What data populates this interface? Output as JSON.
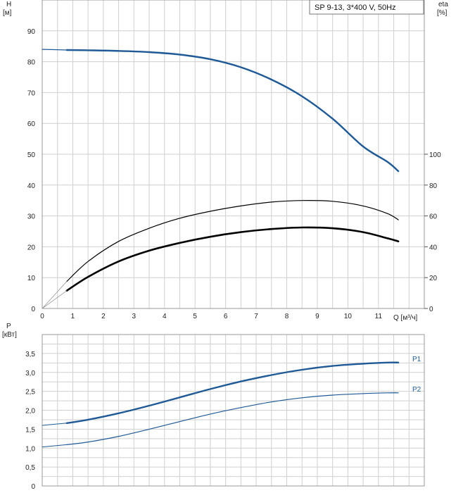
{
  "legend_box": "SP 9-13, 3*400 V, 50Hz",
  "colors": {
    "blue": "#1f5a96",
    "black": "#000000",
    "grid": "#cfcfcf"
  },
  "chart_data": [
    {
      "type": "line",
      "panel": "head_eta",
      "xlabel": "Q [м³/ч]",
      "ylabel": "H",
      "ylabel_unit": "[м]",
      "y2label": "eta",
      "y2label_unit": "[%]",
      "xlim": [
        0,
        12.5
      ],
      "ylim": [
        0,
        100
      ],
      "y2lim": [
        0,
        200
      ],
      "x_ticks": [
        0,
        1,
        2,
        3,
        4,
        5,
        6,
        7,
        8,
        9,
        10,
        11
      ],
      "y_ticks": [
        0,
        10,
        20,
        30,
        40,
        50,
        60,
        70,
        80,
        90
      ],
      "y2_ticks": [
        0,
        20,
        40,
        60,
        80,
        100
      ],
      "grid": true,
      "series": [
        {
          "name": "",
          "axis": "left",
          "color": "#1f5a96",
          "width": 2.4,
          "x": [
            0.8,
            1.5,
            2.5,
            3.5,
            4.5,
            5.5,
            6.5,
            7.5,
            8.5,
            9.5,
            10.5,
            11.3,
            11.65
          ],
          "y": [
            83.8,
            83.7,
            83.5,
            83.1,
            82.3,
            80.8,
            78.2,
            74.2,
            68.8,
            61.5,
            52.5,
            47.5,
            44.5
          ]
        },
        {
          "name": "",
          "axis": "left",
          "color": "#1f5a96",
          "width": 1.2,
          "extrapolated": true,
          "x": [
            0,
            0.8
          ],
          "y": [
            84.0,
            83.8
          ]
        },
        {
          "name": "",
          "axis": "right",
          "color": "#000000",
          "width": 1.2,
          "x": [
            0.8,
            1.5,
            2.5,
            3.5,
            4.5,
            5.5,
            6.5,
            7.5,
            8.5,
            9.5,
            10.5,
            11.3,
            11.65
          ],
          "y": [
            17.5,
            30.5,
            43.5,
            52.0,
            58.5,
            63.0,
            66.5,
            69.0,
            70.0,
            69.5,
            66.5,
            61.5,
            57.5
          ]
        },
        {
          "name": "",
          "axis": "right",
          "color": "#000000",
          "width": 2.6,
          "x": [
            0.8,
            1.5,
            2.5,
            3.5,
            4.5,
            5.5,
            6.5,
            7.5,
            8.5,
            9.5,
            10.5,
            11.3,
            11.65
          ],
          "y": [
            11.5,
            20.5,
            30.5,
            37.5,
            42.5,
            46.5,
            49.5,
            51.5,
            52.5,
            52.0,
            49.5,
            45.5,
            43.5
          ]
        },
        {
          "name": "",
          "axis": "right",
          "color": "#999999",
          "width": 0.8,
          "extrapolated": true,
          "x": [
            0,
            0.8
          ],
          "y": [
            0,
            17.5
          ]
        },
        {
          "name": "",
          "axis": "right",
          "color": "#999999",
          "width": 0.8,
          "extrapolated": true,
          "x": [
            0,
            0.8
          ],
          "y": [
            0,
            11.5
          ]
        }
      ]
    },
    {
      "type": "line",
      "panel": "power",
      "xlabel": "",
      "ylabel": "P",
      "ylabel_unit": "[кВт]",
      "xlim": [
        0,
        12.5
      ],
      "ylim": [
        0,
        4.0
      ],
      "y_ticks": [
        "0",
        "0,5",
        "1,0",
        "1,5",
        "2,0",
        "2,5",
        "3,0",
        "3,5"
      ],
      "grid": true,
      "series": [
        {
          "name": "P1",
          "color": "#1f5a96",
          "width": 2.4,
          "x": [
            0.8,
            1.5,
            2.5,
            3.5,
            4.5,
            5.5,
            6.5,
            7.5,
            8.5,
            9.5,
            10.5,
            11.3,
            11.65
          ],
          "y": [
            1.66,
            1.75,
            1.92,
            2.12,
            2.34,
            2.56,
            2.76,
            2.93,
            3.07,
            3.17,
            3.23,
            3.26,
            3.26
          ]
        },
        {
          "name": "",
          "color": "#1f5a96",
          "width": 1.0,
          "extrapolated": true,
          "x": [
            0,
            0.8
          ],
          "y": [
            1.6,
            1.66
          ]
        },
        {
          "name": "P2",
          "color": "#1f5a96",
          "width": 1.2,
          "x": [
            0.8,
            1.5,
            2.5,
            3.5,
            4.5,
            5.5,
            6.5,
            7.5,
            8.5,
            9.5,
            10.5,
            11.3,
            11.65
          ],
          "y": [
            1.09,
            1.16,
            1.31,
            1.5,
            1.7,
            1.9,
            2.07,
            2.22,
            2.33,
            2.4,
            2.44,
            2.46,
            2.46
          ]
        },
        {
          "name": "",
          "color": "#1f5a96",
          "width": 1.0,
          "extrapolated": true,
          "x": [
            0,
            0.8
          ],
          "y": [
            1.03,
            1.09
          ]
        }
      ]
    }
  ]
}
